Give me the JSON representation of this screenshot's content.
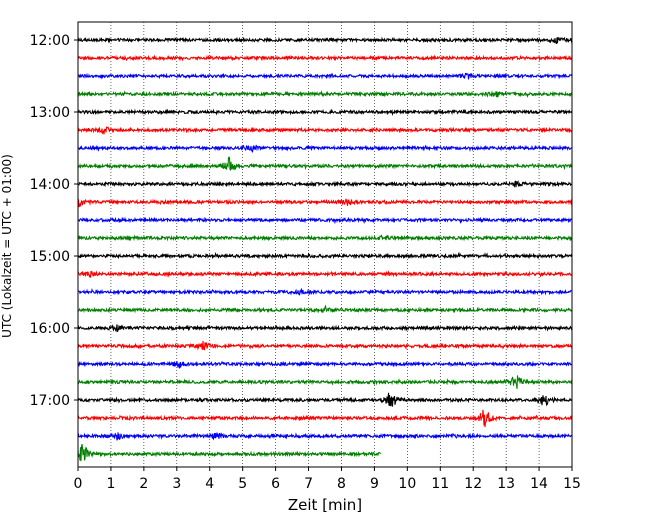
{
  "chart_data": {
    "type": "line",
    "title": "",
    "xlabel": "Zeit  [min]",
    "ylabel": "UTC (Lokalzeit = UTC + 01:00)",
    "xlim": [
      0,
      15
    ],
    "x_ticks": [
      "0",
      "1",
      "2",
      "3",
      "4",
      "5",
      "6",
      "7",
      "8",
      "9",
      "10",
      "11",
      "12",
      "13",
      "14",
      "15"
    ],
    "y_tick_labels": [
      "12:00",
      "13:00",
      "14:00",
      "15:00",
      "16:00",
      "17:00"
    ],
    "grid": "vertical dotted lines at each minute",
    "colors": [
      "#000000",
      "#ff0000",
      "#0000ff",
      "#007f00"
    ],
    "series": [
      {
        "start": "12:00",
        "color": "#000000",
        "events": [
          {
            "t": 14.55,
            "amp": 1.6
          }
        ]
      },
      {
        "start": "12:15",
        "color": "#ff0000",
        "events": []
      },
      {
        "start": "12:30",
        "color": "#0000ff",
        "events": [
          {
            "t": 11.8,
            "amp": 1.3
          }
        ]
      },
      {
        "start": "12:45",
        "color": "#007f00",
        "events": [
          {
            "t": 12.7,
            "amp": 1.1
          }
        ]
      },
      {
        "start": "13:00",
        "color": "#000000",
        "events": []
      },
      {
        "start": "13:15",
        "color": "#ff0000",
        "events": [
          {
            "t": 0.8,
            "amp": 1.6
          }
        ]
      },
      {
        "start": "13:30",
        "color": "#0000ff",
        "events": [
          {
            "t": 5.3,
            "amp": 1.6
          }
        ]
      },
      {
        "start": "13:45",
        "color": "#007f00",
        "events": [
          {
            "t": 4.6,
            "amp": 4.5
          }
        ]
      },
      {
        "start": "14:00",
        "color": "#000000",
        "events": [
          {
            "t": 13.3,
            "amp": 1.3
          }
        ]
      },
      {
        "start": "14:15",
        "color": "#ff0000",
        "events": [
          {
            "t": 8.2,
            "amp": 1.4
          },
          {
            "t": 0.05,
            "amp": 2.0
          }
        ]
      },
      {
        "start": "14:30",
        "color": "#0000ff",
        "events": []
      },
      {
        "start": "14:45",
        "color": "#007f00",
        "events": [
          {
            "t": 9.3,
            "amp": 1.2
          }
        ]
      },
      {
        "start": "15:00",
        "color": "#000000",
        "events": []
      },
      {
        "start": "15:15",
        "color": "#ff0000",
        "events": [
          {
            "t": 0.35,
            "amp": 1.4
          }
        ]
      },
      {
        "start": "15:30",
        "color": "#0000ff",
        "events": [
          {
            "t": 6.7,
            "amp": 1.2
          }
        ]
      },
      {
        "start": "15:45",
        "color": "#007f00",
        "events": [
          {
            "t": 7.5,
            "amp": 1.0
          }
        ]
      },
      {
        "start": "16:00",
        "color": "#000000",
        "events": [
          {
            "t": 1.2,
            "amp": 1.2
          }
        ]
      },
      {
        "start": "16:15",
        "color": "#ff0000",
        "events": [
          {
            "t": 3.8,
            "amp": 2.0
          }
        ]
      },
      {
        "start": "16:30",
        "color": "#0000ff",
        "events": [
          {
            "t": 3.05,
            "amp": 1.5
          }
        ]
      },
      {
        "start": "16:45",
        "color": "#007f00",
        "events": [
          {
            "t": 13.3,
            "amp": 4.0
          }
        ]
      },
      {
        "start": "17:00",
        "color": "#000000",
        "events": [
          {
            "t": 9.5,
            "amp": 5.0
          },
          {
            "t": 14.15,
            "amp": 3.0
          }
        ]
      },
      {
        "start": "17:15",
        "color": "#ff0000",
        "events": [
          {
            "t": 12.35,
            "amp": 5.0
          }
        ]
      },
      {
        "start": "17:30",
        "color": "#0000ff",
        "events": [
          {
            "t": 1.2,
            "amp": 1.5
          },
          {
            "t": 4.2,
            "amp": 1.4
          }
        ]
      },
      {
        "start": "17:45",
        "color": "#007f00",
        "end_min": 9.2,
        "events": [
          {
            "t": 0.15,
            "amp": 5.0
          }
        ]
      }
    ]
  }
}
